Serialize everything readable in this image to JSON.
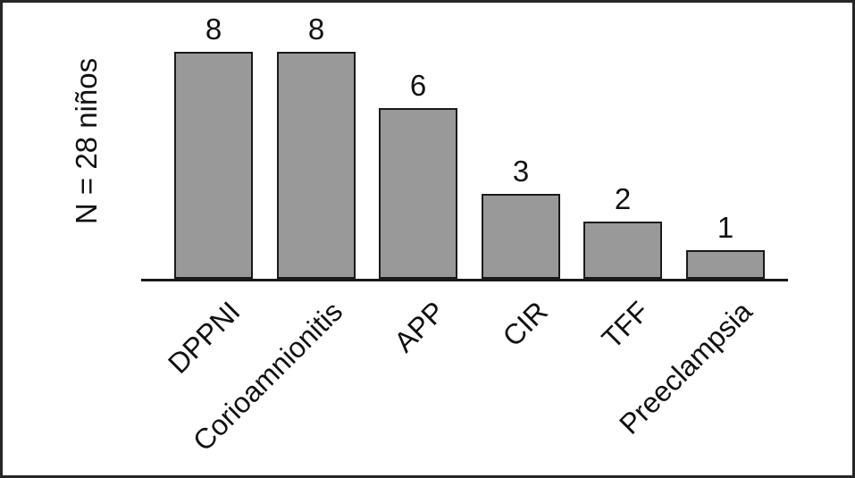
{
  "chart_data": {
    "type": "bar",
    "title": "",
    "ylabel": "N = 28 niños",
    "xlabel": "",
    "categories": [
      "DPPNI",
      "Corioamnionitis",
      "APP",
      "CIR",
      "TFF",
      "Preeclampsia"
    ],
    "values": [
      8,
      8,
      6,
      3,
      2,
      1
    ],
    "value_labels": [
      "8",
      "8",
      "6",
      "3",
      "2",
      "1"
    ],
    "ylim": [
      0,
      8
    ],
    "grid": false,
    "legend": false,
    "bar_fill_color": "#999999",
    "bar_border_color": "#1a1a1a",
    "axis_color": "#1a1a1a",
    "text_color": "#111111",
    "frame_border_color": "#262626",
    "background_color": "#ffffff"
  }
}
